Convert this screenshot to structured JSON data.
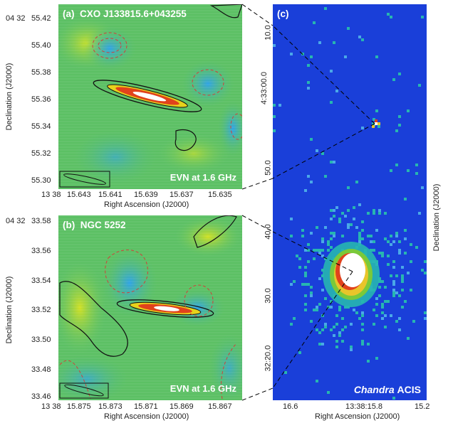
{
  "panel_a": {
    "label": "(a)",
    "source": "CXO J133815.6+043255",
    "note": "EVN at 1.6 GHz",
    "ra_prefix": "13 38",
    "ra_ticks": [
      "15.643",
      "15.641",
      "15.639",
      "15.637",
      "15.635"
    ],
    "dec_prefix": "04 32",
    "dec_ticks": [
      "55.42",
      "55.40",
      "55.38",
      "55.36",
      "55.34",
      "55.32",
      "55.30"
    ]
  },
  "panel_b": {
    "label": "(b)",
    "source": "NGC 5252",
    "note": "EVN at 1.6 GHz",
    "ra_prefix": "13 38",
    "ra_ticks": [
      "15.875",
      "15.873",
      "15.871",
      "15.869",
      "15.867"
    ],
    "dec_prefix": "04 32",
    "dec_ticks": [
      "33.58",
      "33.56",
      "33.54",
      "33.52",
      "33.50",
      "33.48",
      "33.46"
    ]
  },
  "panel_c": {
    "label": "(c)",
    "instrument_italic": "Chandra",
    "instrument": "ACIS",
    "dec_ticks": [
      "10.0",
      "4:33:00.0",
      "50.0",
      "40.0",
      "30.0",
      "32:20.0"
    ],
    "ra_ticks": [
      "16.6",
      "13:38:15.8",
      "15.2"
    ]
  },
  "axes": {
    "ra_label": "Right Ascension (J2000)",
    "dec_label": "Declination (J2000)"
  },
  "colors": {
    "background_green": "#61c34f",
    "chandra_blue": "#1a3fd9",
    "core_white": "#ffffff"
  }
}
